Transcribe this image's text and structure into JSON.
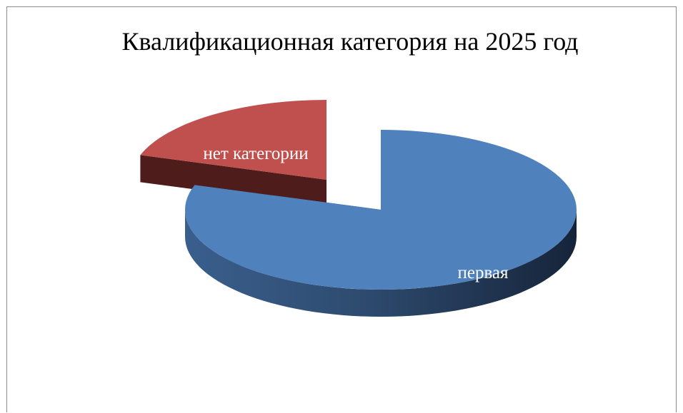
{
  "chart_data": {
    "type": "pie",
    "style": "3d-exploded",
    "title": "Квалификационная категория на 2025 год",
    "legend": "none",
    "slices": [
      {
        "label": "первая",
        "value": 80,
        "color": "#4f81bd",
        "side_color": "#2a4567"
      },
      {
        "label": "нет категории",
        "value": 20,
        "color": "#c0504d",
        "side_color": "#4d1c1b"
      }
    ]
  }
}
